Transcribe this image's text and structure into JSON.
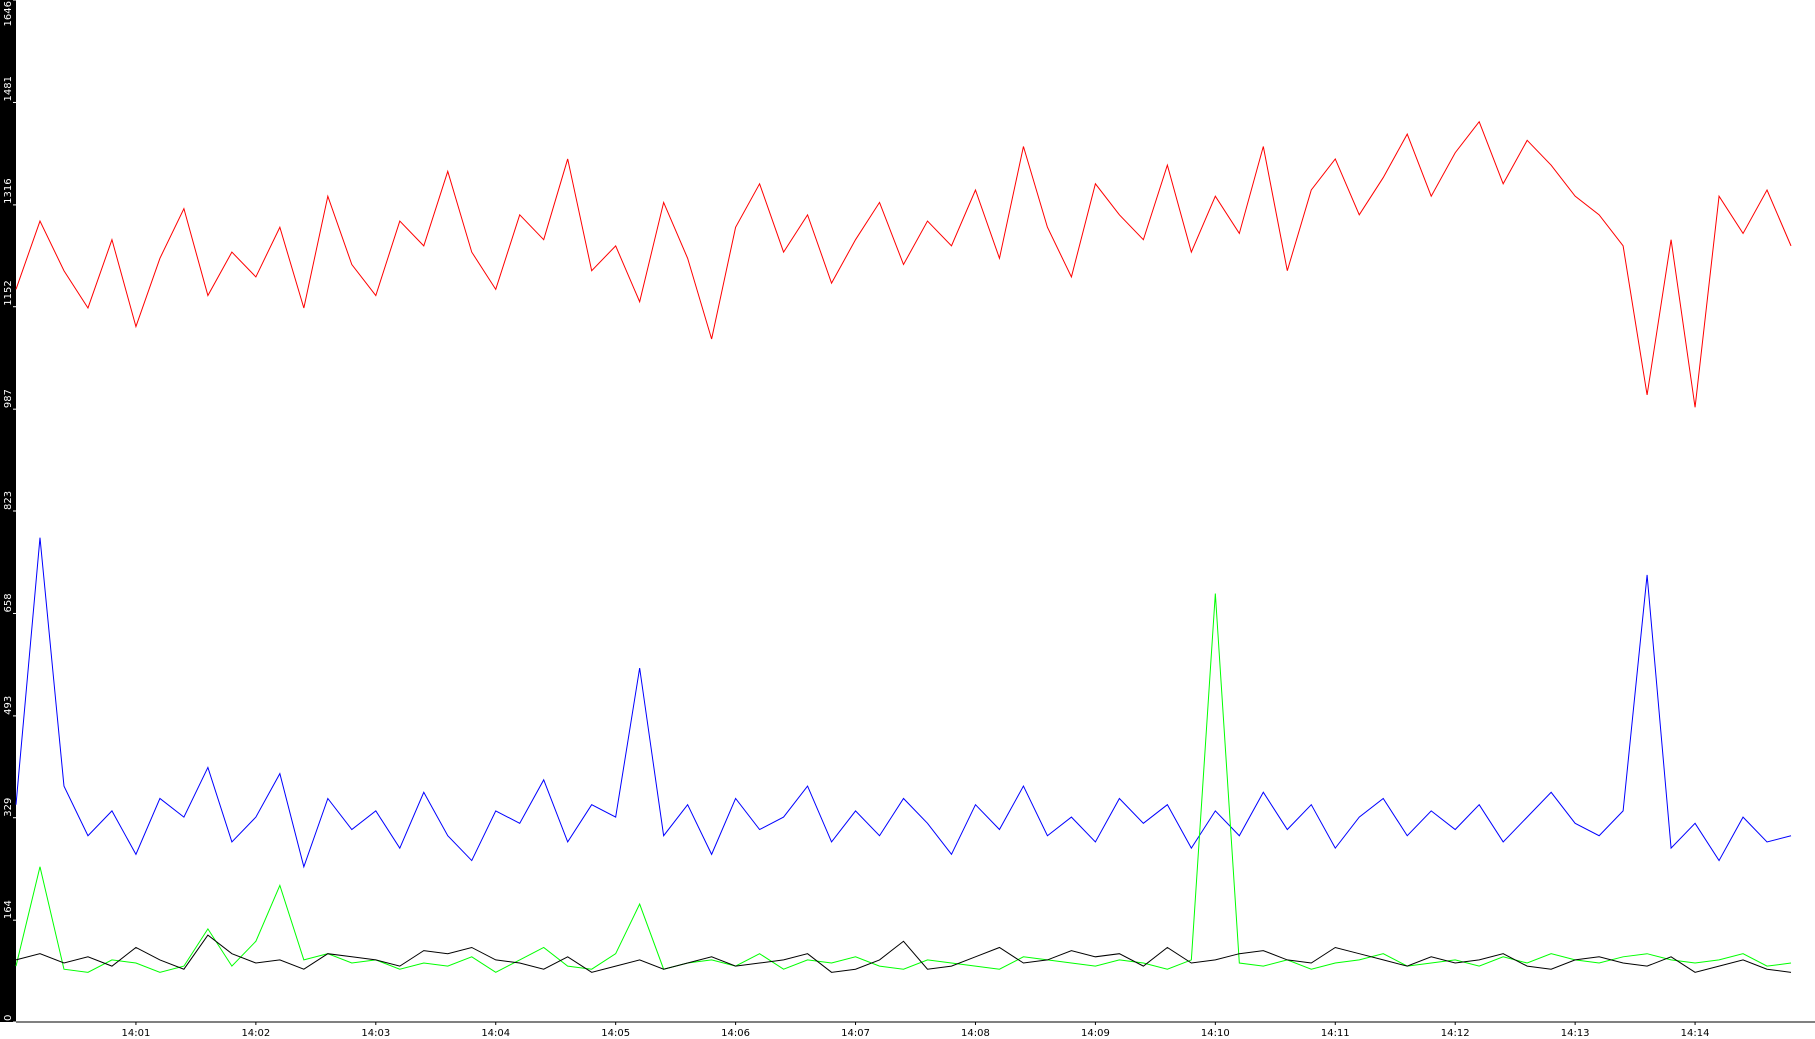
{
  "chart_data": {
    "type": "line",
    "x": [
      0,
      0.2,
      0.4,
      0.6,
      0.8,
      1,
      1.2,
      1.4,
      1.6,
      1.8,
      2,
      2.2,
      2.4,
      2.6,
      2.8,
      3,
      3.2,
      3.4,
      3.6,
      3.8,
      4,
      4.2,
      4.4,
      4.6,
      4.8,
      5,
      5.2,
      5.4,
      5.6,
      5.8,
      6,
      6.2,
      6.4,
      6.6,
      6.8,
      7,
      7.2,
      7.4,
      7.6,
      7.8,
      8,
      8.2,
      8.4,
      8.6,
      8.8,
      9,
      9.2,
      9.4,
      9.6,
      9.8,
      10,
      10.2,
      10.4,
      10.6,
      10.8,
      11,
      11.2,
      11.4,
      11.6,
      11.8,
      12,
      12.2,
      12.4,
      12.6,
      12.8,
      13,
      13.2,
      13.4,
      13.6,
      13.8,
      14,
      14.2,
      14.4,
      14.6,
      14.8
    ],
    "series": [
      {
        "color": "#ff0000",
        "values": [
          1180,
          1290,
          1210,
          1150,
          1260,
          1120,
          1230,
          1310,
          1170,
          1240,
          1200,
          1280,
          1150,
          1330,
          1220,
          1170,
          1290,
          1250,
          1370,
          1240,
          1180,
          1300,
          1260,
          1390,
          1210,
          1250,
          1160,
          1320,
          1230,
          1100,
          1280,
          1350,
          1240,
          1300,
          1190,
          1260,
          1320,
          1220,
          1290,
          1250,
          1340,
          1230,
          1410,
          1280,
          1200,
          1350,
          1300,
          1260,
          1380,
          1240,
          1330,
          1270,
          1410,
          1210,
          1340,
          1390,
          1300,
          1360,
          1430,
          1330,
          1400,
          1450,
          1350,
          1420,
          1380,
          1330,
          1300,
          1250,
          1010,
          1260,
          990,
          1330,
          1270,
          1340,
          1250
        ]
      },
      {
        "color": "#0000ff",
        "values": [
          350,
          780,
          380,
          300,
          340,
          270,
          360,
          330,
          410,
          290,
          330,
          400,
          250,
          360,
          310,
          340,
          280,
          370,
          300,
          260,
          340,
          320,
          390,
          290,
          350,
          330,
          570,
          300,
          350,
          270,
          360,
          310,
          330,
          380,
          290,
          340,
          300,
          360,
          320,
          270,
          350,
          310,
          380,
          300,
          330,
          290,
          360,
          320,
          350,
          280,
          340,
          300,
          370,
          310,
          350,
          280,
          330,
          360,
          300,
          340,
          310,
          350,
          290,
          330,
          370,
          320,
          300,
          340,
          720,
          280,
          320,
          260,
          330,
          290,
          300
        ]
      },
      {
        "color": "#00ff00",
        "values": [
          90,
          250,
          85,
          80,
          100,
          95,
          80,
          90,
          150,
          90,
          130,
          220,
          100,
          110,
          95,
          100,
          85,
          95,
          90,
          105,
          80,
          100,
          120,
          90,
          85,
          110,
          190,
          85,
          95,
          100,
          90,
          110,
          85,
          100,
          95,
          105,
          90,
          85,
          100,
          95,
          90,
          85,
          105,
          100,
          95,
          90,
          100,
          95,
          85,
          100,
          690,
          95,
          90,
          100,
          85,
          95,
          100,
          110,
          90,
          95,
          100,
          90,
          105,
          95,
          110,
          100,
          95,
          105,
          110,
          100,
          95,
          100,
          110,
          90,
          95
        ]
      },
      {
        "color": "#000000",
        "values": [
          100,
          110,
          95,
          105,
          90,
          120,
          100,
          85,
          140,
          110,
          95,
          100,
          85,
          110,
          105,
          100,
          90,
          115,
          110,
          120,
          100,
          95,
          85,
          105,
          80,
          90,
          100,
          85,
          95,
          105,
          90,
          95,
          100,
          110,
          80,
          85,
          100,
          130,
          85,
          90,
          105,
          120,
          95,
          100,
          115,
          105,
          110,
          90,
          120,
          95,
          100,
          110,
          115,
          100,
          95,
          120,
          110,
          100,
          90,
          105,
          95,
          100,
          110,
          90,
          85,
          100,
          105,
          95,
          90,
          105,
          80,
          90,
          100,
          85,
          80
        ]
      }
    ],
    "xlim": [
      0,
      15
    ],
    "xticks": [
      {
        "value": 1,
        "label": "14:01"
      },
      {
        "value": 2,
        "label": "14:02"
      },
      {
        "value": 3,
        "label": "14:03"
      },
      {
        "value": 4,
        "label": "14:04"
      },
      {
        "value": 5,
        "label": "14:05"
      },
      {
        "value": 6,
        "label": "14:06"
      },
      {
        "value": 7,
        "label": "14:07"
      },
      {
        "value": 8,
        "label": "14:08"
      },
      {
        "value": 9,
        "label": "14:09"
      },
      {
        "value": 10,
        "label": "14:10"
      },
      {
        "value": 11,
        "label": "14:11"
      },
      {
        "value": 12,
        "label": "14:12"
      },
      {
        "value": 13,
        "label": "14:13"
      },
      {
        "value": 14,
        "label": "14:14"
      }
    ],
    "ylim": [
      0,
      1646
    ],
    "yticks": [
      0,
      164,
      329,
      493,
      658,
      823,
      987,
      1152,
      1316,
      1481,
      1646
    ]
  }
}
